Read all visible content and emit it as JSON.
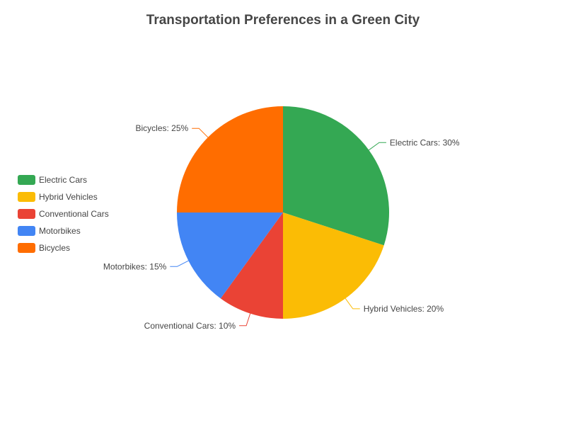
{
  "chart_data": {
    "type": "pie",
    "title": "Transportation Preferences in a Green City",
    "categories": [
      "Electric Cars",
      "Hybrid Vehicles",
      "Conventional Cars",
      "Motorbikes",
      "Bicycles"
    ],
    "values": [
      30,
      20,
      10,
      15,
      25
    ],
    "unit": "%",
    "colors": [
      "#34a853",
      "#fbbc05",
      "#ea4335",
      "#4285f4",
      "#ff6d00"
    ],
    "labels": [
      "Electric Cars: 30%",
      "Hybrid Vehicles: 20%",
      "Conventional Cars: 10%",
      "Motorbikes: 15%",
      "Bicycles: 25%"
    ],
    "legend": {
      "position": "left",
      "items": [
        "Electric Cars",
        "Hybrid Vehicles",
        "Conventional Cars",
        "Motorbikes",
        "Bicycles"
      ]
    }
  }
}
